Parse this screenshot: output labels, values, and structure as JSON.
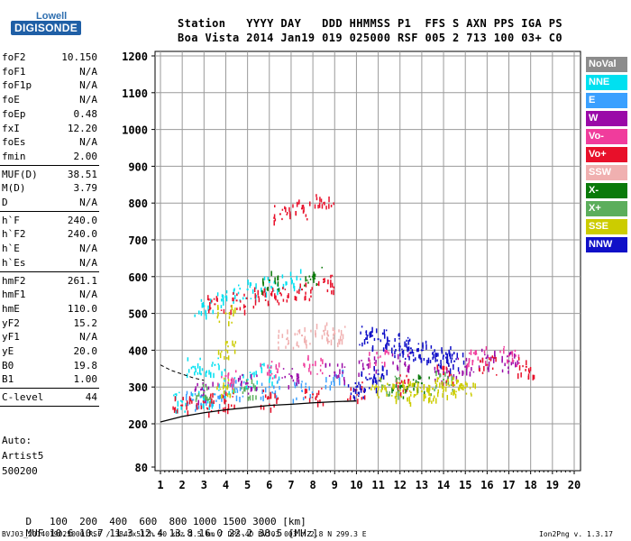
{
  "logo": {
    "line1": "Lowell",
    "line2": "DIGISONDE"
  },
  "header": {
    "line1": "Station   YYYY DAY   DDD HHMMSS P1  FFS S AXN PPS IGA PS",
    "line2": "Boa Vista 2014 Jan19 019 025000 RSF 005 2 713 100 03+ C0"
  },
  "params": {
    "group1": [
      {
        "name": "foF2",
        "value": "10.150"
      },
      {
        "name": "foF1",
        "value": "N/A"
      },
      {
        "name": "foF1p",
        "value": "N/A"
      },
      {
        "name": "foE",
        "value": "N/A"
      },
      {
        "name": "foEp",
        "value": "0.48"
      },
      {
        "name": "fxI",
        "value": "12.20"
      },
      {
        "name": "foEs",
        "value": "N/A"
      },
      {
        "name": "fmin",
        "value": "2.00"
      }
    ],
    "group2": [
      {
        "name": "MUF(D)",
        "value": "38.51"
      },
      {
        "name": "M(D)",
        "value": "3.79"
      },
      {
        "name": "D",
        "value": "N/A"
      }
    ],
    "group3": [
      {
        "name": "h`F",
        "value": "240.0"
      },
      {
        "name": "h`F2",
        "value": "240.0"
      },
      {
        "name": "h`E",
        "value": "N/A"
      },
      {
        "name": "h`Es",
        "value": "N/A"
      }
    ],
    "group4": [
      {
        "name": "hmF2",
        "value": "261.1"
      },
      {
        "name": "hmF1",
        "value": "N/A"
      },
      {
        "name": "hmE",
        "value": "110.0"
      },
      {
        "name": "yF2",
        "value": "15.2"
      },
      {
        "name": "yF1",
        "value": "N/A"
      },
      {
        "name": "yE",
        "value": "20.0"
      },
      {
        "name": "B0",
        "value": "19.8"
      },
      {
        "name": "B1",
        "value": "1.00"
      }
    ],
    "clevel": {
      "name": "C-level",
      "value": "44"
    }
  },
  "autoscaling": [
    "Auto:",
    "Artist5",
    "500200"
  ],
  "legend": [
    {
      "label": "NoVal",
      "color": "#8c8c8c"
    },
    {
      "label": "NNE",
      "color": "#00e0f0"
    },
    {
      "label": "E",
      "color": "#3aa0ff"
    },
    {
      "label": "W",
      "color": "#9a0aa8"
    },
    {
      "label": "Vo-",
      "color": "#f03c9c"
    },
    {
      "label": "Vo+",
      "color": "#e8102a"
    },
    {
      "label": "SSW",
      "color": "#f0b0b0"
    },
    {
      "label": "X-",
      "color": "#0a7a0a"
    },
    {
      "label": "X+",
      "color": "#5cae5c"
    },
    {
      "label": "SSE",
      "color": "#cccc00"
    },
    {
      "label": "NNW",
      "color": "#1010c8"
    }
  ],
  "bottom_table": {
    "row1_label": "D",
    "row1_values": "   100  200  400  600  800 1000 1500 3000 [km]",
    "row2_label": "MUF",
    "row2_values": " 10.6 10.7 11.3 12.4 13.8 16.0 22.2 38.5 [MHz]"
  },
  "footer": {
    "left": "BVJ03_2014019025000.RSF / 384fx512h 50 kHz 2.5 km / DPS-4D BVJ03 003 / 2.8 N 299.3 E",
    "right": "Ion2Png v. 1.3.17"
  },
  "chart_data": {
    "type": "scatter",
    "title": "",
    "xlabel": "",
    "ylabel": "",
    "xlim": [
      0.8,
      20.2
    ],
    "ylim": [
      80,
      1210
    ],
    "x_ticks": [
      1,
      2,
      3,
      4,
      5,
      6,
      7,
      8,
      9,
      10,
      11,
      12,
      13,
      14,
      15,
      16,
      17,
      18,
      19,
      20
    ],
    "y_ticks": [
      80,
      200,
      300,
      400,
      500,
      600,
      700,
      800,
      900,
      1000,
      1100,
      1200
    ],
    "grid": true,
    "series": [
      {
        "name": "NNE",
        "color": "#00e0f0",
        "points": [
          [
            3.0,
            520
          ],
          [
            4.0,
            545
          ],
          [
            5.0,
            565
          ],
          [
            6.0,
            585
          ],
          [
            7.0,
            595
          ],
          [
            2.0,
            260
          ],
          [
            3.0,
            275
          ],
          [
            4.0,
            300
          ],
          [
            5.0,
            320
          ],
          [
            6.0,
            340
          ],
          [
            3.5,
            360
          ],
          [
            2.5,
            355
          ]
        ]
      },
      {
        "name": "E",
        "color": "#3aa0ff",
        "points": [
          [
            2.5,
            265
          ],
          [
            3.5,
            280
          ],
          [
            4.5,
            295
          ],
          [
            6.0,
            300
          ],
          [
            7.5,
            290
          ],
          [
            9.0,
            330
          ]
        ]
      },
      {
        "name": "W",
        "color": "#9a0aa8",
        "points": [
          [
            3.0,
            290
          ],
          [
            5.0,
            310
          ],
          [
            7.0,
            330
          ],
          [
            9.0,
            340
          ],
          [
            10.5,
            360
          ],
          [
            12.0,
            370
          ],
          [
            14.0,
            340
          ],
          [
            15.0,
            355
          ],
          [
            16.0,
            380
          ],
          [
            17.0,
            370
          ]
        ]
      },
      {
        "name": "Vo-",
        "color": "#f03c9c",
        "points": [
          [
            4.0,
            330
          ],
          [
            6.0,
            345
          ],
          [
            8.0,
            360
          ],
          [
            11.0,
            380
          ],
          [
            15.5,
            390
          ],
          [
            17.0,
            385
          ]
        ]
      },
      {
        "name": "Vo+",
        "color": "#e8102a",
        "points": [
          [
            3.5,
            525
          ],
          [
            4.5,
            535
          ],
          [
            5.5,
            545
          ],
          [
            6.5,
            555
          ],
          [
            7.5,
            565
          ],
          [
            8.5,
            585
          ],
          [
            2.0,
            250
          ],
          [
            3.0,
            258
          ],
          [
            4.0,
            262
          ],
          [
            6.0,
            270
          ],
          [
            8.0,
            280
          ],
          [
            10.0,
            292
          ],
          [
            12.0,
            310
          ],
          [
            14.0,
            335
          ],
          [
            16.0,
            360
          ],
          [
            17.8,
            355
          ],
          [
            6.5,
            770
          ],
          [
            7.5,
            785
          ],
          [
            8.5,
            800
          ]
        ]
      },
      {
        "name": "SSW",
        "color": "#f0b0b0",
        "points": [
          [
            6.8,
            430
          ],
          [
            7.5,
            440
          ],
          [
            8.5,
            452
          ],
          [
            9.0,
            445
          ]
        ]
      },
      {
        "name": "X-",
        "color": "#0a7a0a",
        "points": [
          [
            6.0,
            590
          ],
          [
            8.0,
            600
          ],
          [
            12.0,
            300
          ],
          [
            13.0,
            310
          ]
        ]
      },
      {
        "name": "X+",
        "color": "#5cae5c",
        "points": [
          [
            3.0,
            285
          ],
          [
            5.0,
            295
          ],
          [
            11.5,
            305
          ],
          [
            14.0,
            320
          ]
        ]
      },
      {
        "name": "SSE",
        "color": "#cccc00",
        "points": [
          [
            11.0,
            300
          ],
          [
            12.0,
            290
          ],
          [
            12.5,
            285
          ],
          [
            13.0,
            288
          ],
          [
            13.5,
            295
          ],
          [
            14.0,
            300
          ],
          [
            14.5,
            305
          ],
          [
            15.0,
            298
          ],
          [
            4.0,
            500
          ],
          [
            4.0,
            400
          ],
          [
            4.0,
            300
          ]
        ]
      },
      {
        "name": "NNW",
        "color": "#1010c8",
        "points": [
          [
            10.5,
            440
          ],
          [
            11.0,
            430
          ],
          [
            11.5,
            425
          ],
          [
            12.0,
            410
          ],
          [
            12.5,
            405
          ],
          [
            13.0,
            400
          ],
          [
            13.5,
            390
          ],
          [
            14.0,
            385
          ],
          [
            14.5,
            370
          ],
          [
            10.0,
            300
          ],
          [
            10.5,
            320
          ],
          [
            11.0,
            335
          ]
        ]
      }
    ],
    "profile_curve": [
      [
        1.0,
        205
      ],
      [
        2.0,
        220
      ],
      [
        3.0,
        230
      ],
      [
        4.0,
        238
      ],
      [
        5.0,
        244
      ],
      [
        6.0,
        250
      ],
      [
        7.0,
        253
      ],
      [
        8.0,
        257
      ],
      [
        9.0,
        260
      ],
      [
        10.0,
        262
      ]
    ]
  }
}
